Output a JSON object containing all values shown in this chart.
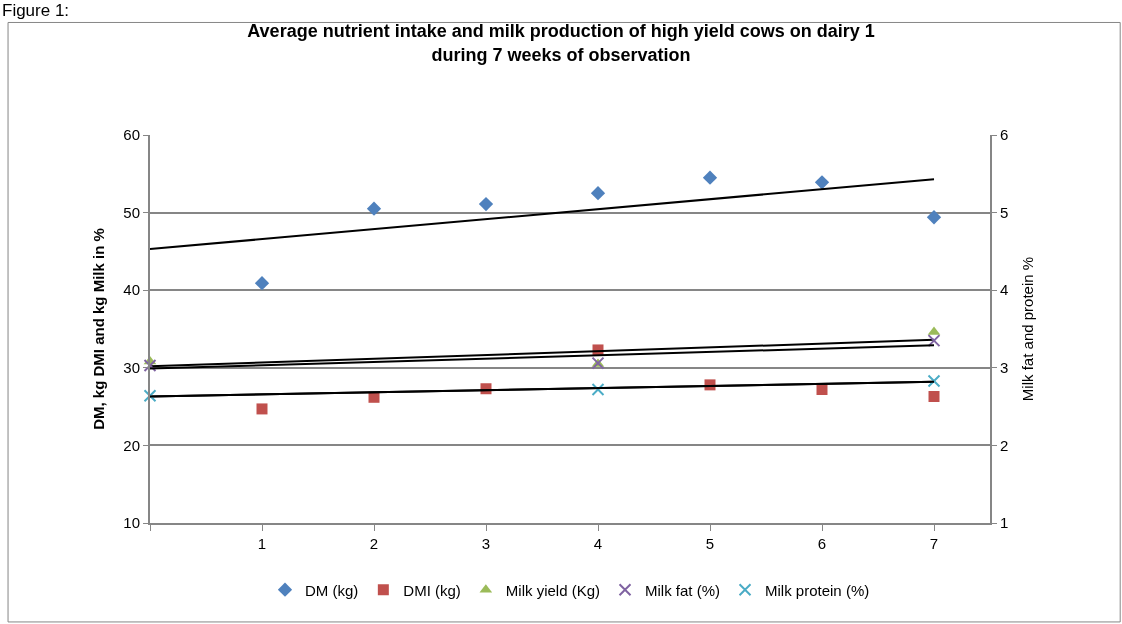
{
  "chart_data": {
    "type": "scatter",
    "title": "Average nutrient intake and milk production of high yield cows on dairy 1\nduring 7 weeks of observation",
    "ylabel": "DM, kg DMI and kg Milk in %",
    "y2label": "Milk fat and protein %",
    "annotations": [
      "Figure 1:"
    ],
    "x": [
      0,
      1,
      2,
      3,
      4,
      5,
      6,
      7
    ],
    "series": [
      {
        "name": "DM (kg)",
        "color": "#4f81bd",
        "marker": "diamond",
        "values": [
          null,
          40.9,
          50.5,
          51.1,
          52.5,
          54.5,
          53.9,
          49.4
        ]
      },
      {
        "name": "DMI (kg)",
        "color": "#c0504d",
        "marker": "square",
        "values": [
          null,
          24.7,
          26.2,
          27.3,
          32.3,
          27.8,
          27.2,
          26.3
        ]
      },
      {
        "name": "Milk yield (Kg)",
        "color": "#9bbb59",
        "marker": "triangle",
        "values": [
          30.8,
          null,
          null,
          null,
          30.5,
          null,
          null,
          34.6
        ]
      },
      {
        "name": "Milk fat (%)",
        "color": "#8064a2",
        "marker": "cross",
        "axis": "y2",
        "values": [
          3.03,
          null,
          null,
          null,
          3.06,
          null,
          null,
          3.35
        ]
      },
      {
        "name": "Milk protein (%)",
        "color": "#4bacc6",
        "marker": "cross",
        "axis": "y2",
        "values": [
          2.64,
          null,
          null,
          null,
          2.72,
          null,
          null,
          2.83
        ]
      },
      {
        "type": "line",
        "color": "#000000",
        "values": [
          45.3,
          null,
          null,
          null,
          null,
          null,
          null,
          54.3
        ]
      },
      {
        "type": "line",
        "color": "#000000",
        "values": [
          30.2,
          null,
          null,
          null,
          null,
          null,
          null,
          33.6
        ]
      },
      {
        "type": "line",
        "color": "#000000",
        "values": [
          26.3,
          null,
          null,
          null,
          null,
          null,
          null,
          28.2
        ]
      },
      {
        "type": "line",
        "color": "#000000",
        "axis": "y2",
        "values": [
          2.99,
          null,
          null,
          null,
          null,
          null,
          null,
          3.29
        ]
      },
      {
        "type": "line",
        "color": "#000000",
        "axis": "y2",
        "values": [
          2.63,
          null,
          null,
          null,
          null,
          null,
          null,
          2.82
        ]
      }
    ],
    "xlim": [
      0,
      7.5
    ],
    "xticks": [
      {
        "value": 0,
        "label": null
      },
      1,
      2,
      3,
      4,
      5,
      6,
      7
    ],
    "ylim": [
      10,
      60
    ],
    "yticks": [
      10,
      20,
      30,
      40,
      50,
      60
    ],
    "y2lim": [
      1,
      6
    ],
    "y2ticks": [
      1,
      2,
      3,
      4,
      5,
      6
    ],
    "grid": "y",
    "legend": "bottom"
  }
}
